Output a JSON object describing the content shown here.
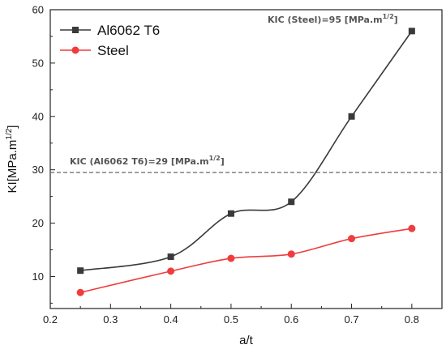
{
  "chart_data": {
    "type": "line",
    "xlabel": "a/t",
    "ylabel": "KI[MPa.m^1/2]",
    "ylabel_base": "KI[MPa.m",
    "ylabel_exp": "1/2",
    "ylabel_close": "]",
    "xlim": [
      0.2,
      0.85
    ],
    "ylim": [
      4,
      60
    ],
    "x_ticks": [
      0.2,
      0.3,
      0.4,
      0.5,
      0.6,
      0.7,
      0.8
    ],
    "x_tick_labels": [
      "0.2",
      "0.3",
      "0.4",
      "0.5",
      "0.6",
      "0.7",
      "0.8"
    ],
    "y_ticks": [
      10,
      20,
      30,
      40,
      50,
      60
    ],
    "y_tick_labels": [
      "10",
      "20",
      "30",
      "40",
      "50",
      "60"
    ],
    "series": [
      {
        "name": "Al6062 T6",
        "color": "#3a3a3a",
        "marker": "square",
        "x": [
          0.25,
          0.4,
          0.5,
          0.6,
          0.7,
          0.8
        ],
        "y": [
          11.1,
          13.7,
          21.8,
          24.0,
          40.0,
          56.0
        ]
      },
      {
        "name": "Steel",
        "color": "#f03c3c",
        "marker": "circle",
        "x": [
          0.25,
          0.4,
          0.5,
          0.6,
          0.7,
          0.8
        ],
        "y": [
          7.0,
          11.0,
          13.4,
          14.2,
          17.1,
          19.0
        ]
      }
    ],
    "reference_line": {
      "y": 29.5,
      "style": "dashed",
      "color": "#666666"
    },
    "annotations": [
      {
        "text_base": "KIC (Steel)=95 [MPa.m",
        "text_exp": "1/2",
        "text_close": "]"
      },
      {
        "text_base": "KIC (Al6062 T6)=29 [MPa.m",
        "text_exp": "1/2",
        "text_close": "]"
      }
    ],
    "legend_position": "top-left",
    "grid": false
  }
}
